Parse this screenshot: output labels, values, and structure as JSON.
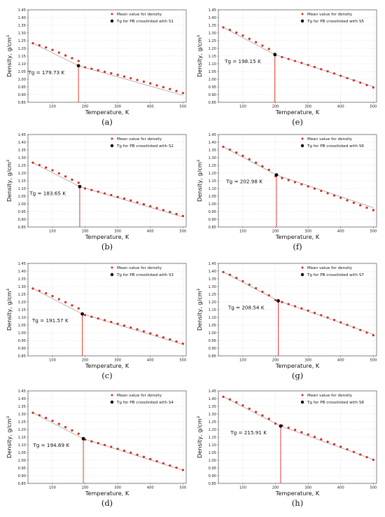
{
  "chart_data": [
    {
      "type": "scatter",
      "caption": "(a)",
      "xlabel": "Temperature, K",
      "ylabel": "Density, g/cm³",
      "xlim": [
        25,
        510
      ],
      "ylim": [
        0.85,
        1.45
      ],
      "xticks": [
        100,
        200,
        300,
        400,
        500
      ],
      "yticks": [
        0.85,
        0.9,
        0.95,
        1.0,
        1.05,
        1.1,
        1.15,
        1.2,
        1.25,
        1.3,
        1.35,
        1.4,
        1.45
      ],
      "grid": true,
      "legend_position": "top-right",
      "series": [
        {
          "name": "Mean value for density",
          "color": "#e3241b",
          "marker": "circle",
          "x": [
            40,
            60,
            80,
            100,
            120,
            140,
            160,
            180,
            200,
            220,
            240,
            260,
            280,
            300,
            320,
            340,
            360,
            380,
            400,
            420,
            440,
            460,
            480,
            500
          ],
          "y": [
            1.233,
            1.22,
            1.206,
            1.19,
            1.172,
            1.154,
            1.136,
            1.118,
            1.077,
            1.068,
            1.058,
            1.048,
            1.038,
            1.028,
            1.017,
            1.006,
            0.995,
            0.984,
            0.972,
            0.96,
            0.948,
            0.936,
            0.923,
            0.91
          ]
        },
        {
          "name": "Tg for PB crosslinked with S1",
          "color": "#000000",
          "marker": "circle",
          "x": [
            179.73
          ],
          "y": [
            1.087
          ]
        }
      ],
      "fit_line": {
        "color": "#9a9a9a",
        "segments": [
          {
            "x": [
              40,
              179.73
            ],
            "y": [
              1.233,
              1.087
            ]
          },
          {
            "x": [
              179.73,
              500
            ],
            "y": [
              1.087,
              0.895
            ]
          }
        ]
      },
      "annotation": {
        "text": "Tg = 179.73 K",
        "x": 179.73,
        "y": 1.087
      }
    },
    {
      "type": "scatter",
      "caption": "(b)",
      "xlabel": "Temperature, K",
      "ylabel": "Density, g/cm³",
      "xlim": [
        25,
        510
      ],
      "ylim": [
        0.85,
        1.45
      ],
      "xticks": [
        100,
        200,
        300,
        400,
        500
      ],
      "yticks": [
        0.85,
        0.9,
        0.95,
        1.0,
        1.05,
        1.1,
        1.15,
        1.2,
        1.25,
        1.3,
        1.35,
        1.4,
        1.45
      ],
      "grid": true,
      "legend_position": "top-right",
      "series": [
        {
          "name": "Mean value for density",
          "color": "#e3241b",
          "marker": "circle",
          "x": [
            40,
            60,
            80,
            100,
            120,
            140,
            160,
            180,
            200,
            220,
            240,
            260,
            280,
            300,
            320,
            340,
            360,
            380,
            400,
            420,
            440,
            460,
            480,
            500
          ],
          "y": [
            1.267,
            1.252,
            1.236,
            1.218,
            1.198,
            1.178,
            1.157,
            1.137,
            1.1,
            1.09,
            1.079,
            1.068,
            1.057,
            1.045,
            1.034,
            1.022,
            1.01,
            0.998,
            0.985,
            0.973,
            0.96,
            0.947,
            0.934,
            0.921
          ]
        },
        {
          "name": "Tg for PB crosslinked with S2",
          "color": "#000000",
          "marker": "circle",
          "x": [
            183.65
          ],
          "y": [
            1.112
          ]
        }
      ],
      "fit_line": {
        "color": "#9a9a9a",
        "segments": [
          {
            "x": [
              40,
              183.65
            ],
            "y": [
              1.267,
              1.112
            ]
          },
          {
            "x": [
              183.65,
              500
            ],
            "y": [
              1.112,
              0.915
            ]
          }
        ]
      },
      "annotation": {
        "text": "Tg = 183.65 K",
        "x": 183.65,
        "y": 1.112
      }
    },
    {
      "type": "scatter",
      "caption": "(c)",
      "xlabel": "Temperature, K",
      "ylabel": "Density, g/cm³",
      "xlim": [
        25,
        510
      ],
      "ylim": [
        0.85,
        1.45
      ],
      "xticks": [
        100,
        200,
        300,
        400,
        500
      ],
      "yticks": [
        0.85,
        0.9,
        0.95,
        1.0,
        1.05,
        1.1,
        1.15,
        1.2,
        1.25,
        1.3,
        1.35,
        1.4,
        1.45
      ],
      "grid": true,
      "legend_position": "top-right",
      "series": [
        {
          "name": "Mean value for density",
          "color": "#e3241b",
          "marker": "circle",
          "x": [
            40,
            60,
            80,
            100,
            120,
            140,
            160,
            180,
            200,
            220,
            240,
            260,
            280,
            300,
            320,
            340,
            360,
            380,
            400,
            420,
            440,
            460,
            480,
            500
          ],
          "y": [
            1.287,
            1.272,
            1.256,
            1.238,
            1.218,
            1.198,
            1.178,
            1.158,
            1.115,
            1.104,
            1.093,
            1.082,
            1.07,
            1.058,
            1.046,
            1.034,
            1.022,
            1.009,
            0.996,
            0.983,
            0.97,
            0.957,
            0.943,
            0.929
          ]
        },
        {
          "name": "Tg for PB crosslinked with S3",
          "color": "#000000",
          "marker": "circle",
          "x": [
            191.57
          ],
          "y": [
            1.122
          ]
        }
      ],
      "fit_line": {
        "color": "#9a9a9a",
        "segments": [
          {
            "x": [
              40,
              191.57
            ],
            "y": [
              1.287,
              1.122
            ]
          },
          {
            "x": [
              191.57,
              500
            ],
            "y": [
              1.122,
              0.925
            ]
          }
        ]
      },
      "annotation": {
        "text": "Tg = 191.57 K",
        "x": 191.57,
        "y": 1.122
      }
    },
    {
      "type": "scatter",
      "caption": "(d)",
      "xlabel": "Temperature, K",
      "ylabel": "Density, g/cm³",
      "xlim": [
        25,
        510
      ],
      "ylim": [
        0.85,
        1.45
      ],
      "xticks": [
        100,
        200,
        300,
        400,
        500
      ],
      "yticks": [
        0.85,
        0.9,
        0.95,
        1.0,
        1.05,
        1.1,
        1.15,
        1.2,
        1.25,
        1.3,
        1.35,
        1.4,
        1.45
      ],
      "grid": true,
      "legend_position": "top-right",
      "series": [
        {
          "name": "Mean value for density",
          "color": "#e3241b",
          "marker": "circle",
          "x": [
            40,
            60,
            80,
            100,
            120,
            140,
            160,
            180,
            200,
            220,
            240,
            260,
            280,
            300,
            320,
            340,
            360,
            380,
            400,
            420,
            440,
            460,
            480,
            500
          ],
          "y": [
            1.308,
            1.292,
            1.275,
            1.256,
            1.236,
            1.215,
            1.194,
            1.172,
            1.134,
            1.122,
            1.111,
            1.099,
            1.087,
            1.074,
            1.062,
            1.049,
            1.036,
            1.022,
            1.008,
            0.994,
            0.98,
            0.966,
            0.952,
            0.937
          ]
        },
        {
          "name": "Tg for PB crosslinked with S4",
          "color": "#000000",
          "marker": "circle",
          "x": [
            194.69
          ],
          "y": [
            1.14
          ]
        }
      ],
      "fit_line": {
        "color": "#9a9a9a",
        "segments": [
          {
            "x": [
              40,
              194.69
            ],
            "y": [
              1.308,
              1.14
            ]
          },
          {
            "x": [
              194.69,
              500
            ],
            "y": [
              1.14,
              0.935
            ]
          }
        ]
      },
      "annotation": {
        "text": "Tg = 194.69 K",
        "x": 194.69,
        "y": 1.14
      }
    },
    {
      "type": "scatter",
      "caption": "(e)",
      "xlabel": "Temperature, K",
      "ylabel": "Density, g/cm³",
      "xlim": [
        25,
        510
      ],
      "ylim": [
        0.85,
        1.45
      ],
      "xticks": [
        100,
        200,
        300,
        400,
        500
      ],
      "yticks": [
        0.85,
        0.9,
        0.95,
        1.0,
        1.05,
        1.1,
        1.15,
        1.2,
        1.25,
        1.3,
        1.35,
        1.4,
        1.45
      ],
      "grid": true,
      "legend_position": "top-right",
      "series": [
        {
          "name": "Mean value for density",
          "color": "#e3241b",
          "marker": "circle",
          "x": [
            40,
            60,
            80,
            100,
            120,
            140,
            160,
            180,
            200,
            220,
            240,
            260,
            280,
            300,
            320,
            340,
            360,
            380,
            400,
            420,
            440,
            460,
            480,
            500
          ],
          "y": [
            1.336,
            1.32,
            1.302,
            1.283,
            1.262,
            1.24,
            1.218,
            1.196,
            1.155,
            1.143,
            1.131,
            1.118,
            1.105,
            1.092,
            1.079,
            1.065,
            1.051,
            1.037,
            1.022,
            1.007,
            0.992,
            0.977,
            0.962,
            0.946
          ]
        },
        {
          "name": "Tg for PB crosslinked with S5",
          "color": "#000000",
          "marker": "circle",
          "x": [
            198.15
          ],
          "y": [
            1.16
          ]
        }
      ],
      "fit_line": {
        "color": "#9a9a9a",
        "segments": [
          {
            "x": [
              40,
              198.15
            ],
            "y": [
              1.336,
              1.16
            ]
          },
          {
            "x": [
              198.15,
              500
            ],
            "y": [
              1.16,
              0.952
            ]
          }
        ]
      },
      "annotation": {
        "text": "Tg = 198.15 K",
        "x": 198.15,
        "y": 1.16
      }
    },
    {
      "type": "scatter",
      "caption": "(f)",
      "xlabel": "Temperature, K",
      "ylabel": "Density, g/cm³",
      "xlim": [
        25,
        510
      ],
      "ylim": [
        0.85,
        1.45
      ],
      "xticks": [
        100,
        200,
        300,
        400,
        500
      ],
      "yticks": [
        0.85,
        0.9,
        0.95,
        1.0,
        1.05,
        1.1,
        1.15,
        1.2,
        1.25,
        1.3,
        1.35,
        1.4,
        1.45
      ],
      "grid": true,
      "legend_position": "top-right",
      "series": [
        {
          "name": "Mean value for density",
          "color": "#e3241b",
          "marker": "circle",
          "x": [
            40,
            60,
            80,
            100,
            120,
            140,
            160,
            180,
            200,
            220,
            240,
            260,
            280,
            300,
            320,
            340,
            360,
            380,
            400,
            420,
            440,
            460,
            480,
            500
          ],
          "y": [
            1.37,
            1.352,
            1.333,
            1.312,
            1.29,
            1.267,
            1.244,
            1.221,
            1.18,
            1.167,
            1.154,
            1.141,
            1.127,
            1.113,
            1.099,
            1.084,
            1.069,
            1.054,
            1.039,
            1.023,
            1.007,
            0.991,
            0.975,
            0.959
          ]
        },
        {
          "name": "Tg for PB crosslinked with S6",
          "color": "#000000",
          "marker": "circle",
          "x": [
            202.98
          ],
          "y": [
            1.188
          ]
        }
      ],
      "fit_line": {
        "color": "#9a9a9a",
        "segments": [
          {
            "x": [
              40,
              202.98
            ],
            "y": [
              1.37,
              1.188
            ]
          },
          {
            "x": [
              202.98,
              500
            ],
            "y": [
              1.188,
              0.975
            ]
          }
        ]
      },
      "annotation": {
        "text": "Tg = 202.98 K",
        "x": 202.98,
        "y": 1.188
      }
    },
    {
      "type": "scatter",
      "caption": "(g)",
      "xlabel": "Temperature, K",
      "ylabel": "Density, g/cm³",
      "xlim": [
        25,
        510
      ],
      "ylim": [
        0.85,
        1.45
      ],
      "xticks": [
        100,
        200,
        300,
        400,
        500
      ],
      "yticks": [
        0.85,
        0.9,
        0.95,
        1.0,
        1.05,
        1.1,
        1.15,
        1.2,
        1.25,
        1.3,
        1.35,
        1.4,
        1.45
      ],
      "grid": true,
      "legend_position": "top-right",
      "series": [
        {
          "name": "Mean value for density",
          "color": "#e3241b",
          "marker": "circle",
          "x": [
            40,
            60,
            80,
            100,
            120,
            140,
            160,
            180,
            200,
            220,
            240,
            260,
            280,
            300,
            320,
            340,
            360,
            380,
            400,
            420,
            440,
            460,
            480,
            500
          ],
          "y": [
            1.394,
            1.376,
            1.356,
            1.335,
            1.312,
            1.289,
            1.266,
            1.243,
            1.212,
            1.199,
            1.186,
            1.172,
            1.158,
            1.144,
            1.129,
            1.114,
            1.099,
            1.083,
            1.067,
            1.051,
            1.035,
            1.018,
            1.001,
            0.984
          ]
        },
        {
          "name": "Tg for PB crosslinked with S7",
          "color": "#000000",
          "marker": "circle",
          "x": [
            208.54
          ],
          "y": [
            1.207
          ]
        }
      ],
      "fit_line": {
        "color": "#9a9a9a",
        "segments": [
          {
            "x": [
              40,
              208.54
            ],
            "y": [
              1.394,
              1.207
            ]
          },
          {
            "x": [
              208.54,
              500
            ],
            "y": [
              1.207,
              0.99
            ]
          }
        ]
      },
      "annotation": {
        "text": "Tg = 208.54 K",
        "x": 208.54,
        "y": 1.207
      }
    },
    {
      "type": "scatter",
      "caption": "(h)",
      "xlabel": "Temperature, K",
      "ylabel": "Density, g/cm³",
      "xlim": [
        25,
        510
      ],
      "ylim": [
        0.85,
        1.45
      ],
      "xticks": [
        100,
        200,
        300,
        400,
        500
      ],
      "yticks": [
        0.85,
        0.9,
        0.95,
        1.0,
        1.05,
        1.1,
        1.15,
        1.2,
        1.25,
        1.3,
        1.35,
        1.4,
        1.45
      ],
      "grid": true,
      "legend_position": "top-right",
      "series": [
        {
          "name": "Mean value for density",
          "color": "#e3241b",
          "marker": "circle",
          "x": [
            40,
            60,
            80,
            100,
            120,
            140,
            160,
            180,
            200,
            220,
            240,
            260,
            280,
            300,
            320,
            340,
            360,
            380,
            400,
            420,
            440,
            460,
            480,
            500
          ],
          "y": [
            1.412,
            1.395,
            1.376,
            1.356,
            1.335,
            1.313,
            1.291,
            1.269,
            1.238,
            1.225,
            1.211,
            1.197,
            1.182,
            1.167,
            1.152,
            1.136,
            1.12,
            1.104,
            1.088,
            1.071,
            1.054,
            1.037,
            1.02,
            1.003
          ]
        },
        {
          "name": "Tg for PB crosslinked with S8",
          "color": "#000000",
          "marker": "circle",
          "x": [
            215.91
          ],
          "y": [
            1.222
          ]
        }
      ],
      "fit_line": {
        "color": "#9a9a9a",
        "segments": [
          {
            "x": [
              40,
              215.91
            ],
            "y": [
              1.412,
              1.222
            ]
          },
          {
            "x": [
              215.91,
              500
            ],
            "y": [
              1.222,
              1.005
            ]
          }
        ]
      },
      "annotation": {
        "text": "Tg = 215.91 K",
        "x": 215.91,
        "y": 1.222
      }
    }
  ],
  "colors": {
    "grid": "#d6d6d6",
    "axes": "#333333",
    "tg_line": "#e3241b"
  }
}
